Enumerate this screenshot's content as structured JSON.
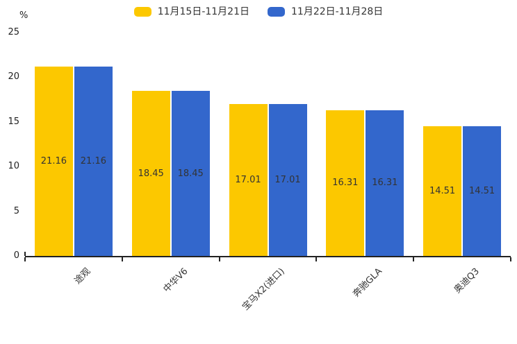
{
  "chart_data": {
    "type": "bar",
    "title": "",
    "categories": [
      "途观",
      "中华V6",
      "宝马X2(进口)",
      "奔驰GLA",
      "奥迪Q3"
    ],
    "series": [
      {
        "name": "11月15日-11月21日",
        "color": "#FCC800",
        "values": [
          21.16,
          18.45,
          17.01,
          16.31,
          14.51
        ]
      },
      {
        "name": "11月22日-11月28日",
        "color": "#3367CC",
        "values": [
          21.16,
          18.45,
          17.01,
          16.31,
          14.51
        ]
      }
    ],
    "xlabel": "",
    "ylabel": "%",
    "yticks": [
      0,
      5,
      10,
      15,
      20,
      25
    ],
    "ylim": [
      0,
      25
    ],
    "grid": false,
    "legend_position": "top-center",
    "value_labels": "inside-center",
    "xtick_rotation": 45,
    "axis_color": "#222222",
    "label_color": "#333333"
  }
}
